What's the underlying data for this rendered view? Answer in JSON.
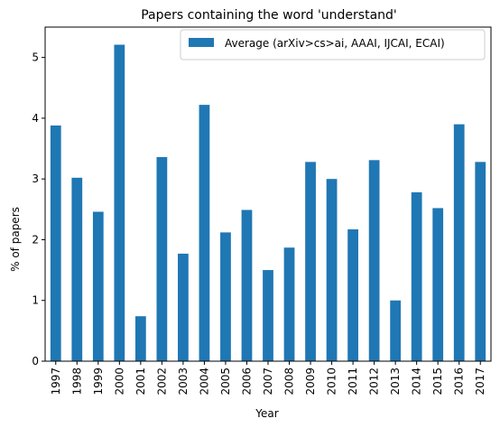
{
  "chart_data": {
    "type": "bar",
    "title": "Papers containing the word 'understand'",
    "xlabel": "Year",
    "ylabel": "% of papers",
    "ylim": [
      0,
      5.5
    ],
    "yticks": [
      0,
      1,
      2,
      3,
      4,
      5
    ],
    "grid": false,
    "legend_position": "top-right",
    "bar_color": "#1f77b4",
    "categories": [
      "1997",
      "1998",
      "1999",
      "2000",
      "2001",
      "2002",
      "2003",
      "2004",
      "2005",
      "2006",
      "2007",
      "2008",
      "2009",
      "2010",
      "2011",
      "2012",
      "2013",
      "2014",
      "2015",
      "2016",
      "2017"
    ],
    "series": [
      {
        "name": "Average (arXiv>cs>ai, AAAI, IJCAI, ECAI)",
        "values": [
          3.88,
          3.02,
          2.46,
          5.21,
          0.74,
          3.36,
          1.77,
          4.22,
          2.12,
          2.49,
          1.5,
          1.87,
          3.28,
          3.0,
          2.17,
          3.31,
          1.0,
          2.78,
          2.52,
          3.9,
          3.28
        ]
      }
    ]
  }
}
